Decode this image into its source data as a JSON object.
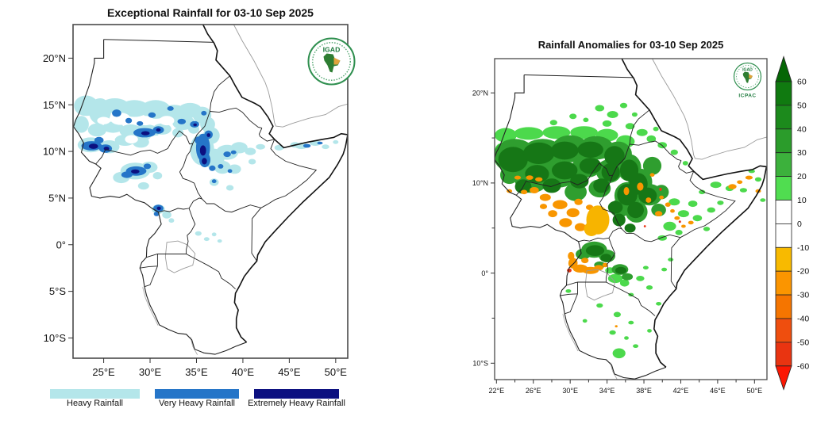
{
  "left_map": {
    "title": "Exceptional Rainfall for 03-10 Sep 2025",
    "x_axis": [
      {
        "label": "25°E",
        "lon": 25
      },
      {
        "label": "30°E",
        "lon": 30
      },
      {
        "label": "35°E",
        "lon": 35
      },
      {
        "label": "40°E",
        "lon": 40
      },
      {
        "label": "45°E",
        "lon": 45
      },
      {
        "label": "50°E",
        "lon": 50
      }
    ],
    "y_axis": [
      {
        "label": "20°N",
        "lat": 20
      },
      {
        "label": "15°N",
        "lat": 15
      },
      {
        "label": "10°N",
        "lat": 10
      },
      {
        "label": "5°N",
        "lat": 5
      },
      {
        "label": "0°",
        "lat": 0
      },
      {
        "label": "5°S",
        "lat": -5
      },
      {
        "label": "10°S",
        "lat": -10
      }
    ],
    "legend": [
      {
        "label": "Heavy Rainfall",
        "color": "#b4e6ea"
      },
      {
        "label": "Very Heavy Rainfall",
        "color": "#2575c8"
      },
      {
        "label": "Extremely Heavy Rainfall",
        "color": "#0c1080"
      }
    ],
    "logo": {
      "label": "IGAD"
    }
  },
  "right_map": {
    "title": "Rainfall Anomalies for 03-10 Sep 2025",
    "x_axis": [
      {
        "label": "22°E",
        "lon": 22
      },
      {
        "label": "26°E",
        "lon": 26
      },
      {
        "label": "30°E",
        "lon": 30
      },
      {
        "label": "34°E",
        "lon": 34
      },
      {
        "label": "38°E",
        "lon": 38
      },
      {
        "label": "42°E",
        "lon": 42
      },
      {
        "label": "46°E",
        "lon": 46
      },
      {
        "label": "50°E",
        "lon": 50
      }
    ],
    "y_axis": [
      {
        "label": "20°N",
        "lat": 20
      },
      {
        "label": "10°N",
        "lat": 10
      },
      {
        "label": "0°",
        "lat": 0
      },
      {
        "label": "10°S",
        "lat": -10
      }
    ],
    "logo": {
      "label": "IGAD",
      "sublabel": "ICPAC"
    },
    "colorbar": {
      "tick_labels": [
        "60",
        "50",
        "40",
        "30",
        "20",
        "10",
        "0",
        "-10",
        "-20",
        "-30",
        "-40",
        "-50",
        "-60"
      ],
      "arrow_top_color": "#056605",
      "arrow_bottom_color": "#fb1703",
      "segment_colors_top_to_bottom": [
        "#107a10",
        "#1c8a1c",
        "#2b9c2b",
        "#3cb13c",
        "#50dd50",
        "#ffffff",
        "#ffffff",
        "#f8ba00",
        "#fb9500",
        "#f57500",
        "#ef4e0e",
        "#e93411"
      ]
    },
    "anomaly_colors": {
      "dark_green": "#167716",
      "mid_green": "#2f9e2f",
      "light_green": "#4cd94c",
      "orange": "#f89600",
      "amber": "#f7b400",
      "red": "#ea3517"
    }
  }
}
